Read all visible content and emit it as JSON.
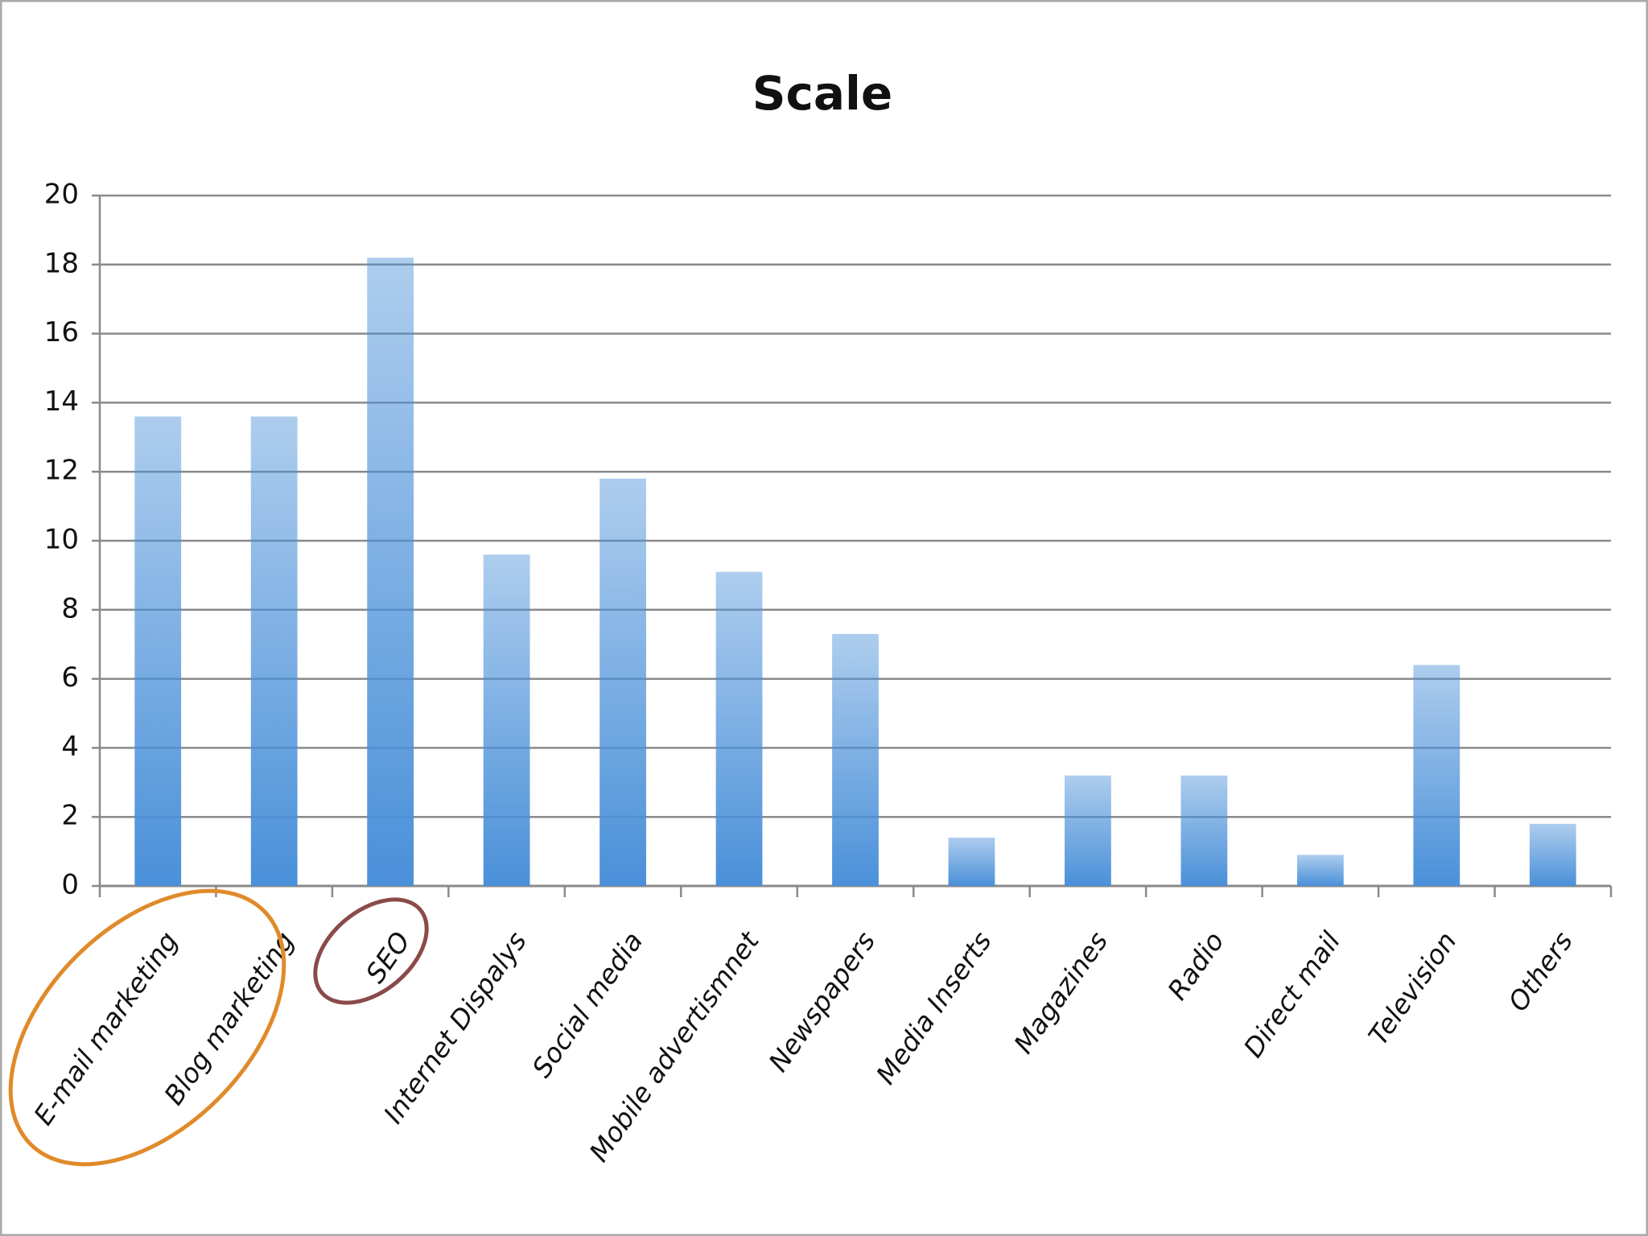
{
  "chart_data": {
    "type": "bar",
    "title": "Scale",
    "categories": [
      "E-mail marketing",
      "Blog marketing",
      "SEO",
      "Internet Dispalys",
      "Social media",
      "Mobile advertismnet",
      "Newspapers",
      "Media Inserts",
      "Magazines",
      "Radio",
      "Direct mail",
      "Television",
      "Others"
    ],
    "values": [
      13.6,
      13.6,
      18.2,
      9.6,
      11.8,
      9.1,
      7.3,
      1.4,
      3.2,
      3.2,
      0.9,
      6.4,
      1.8
    ],
    "color": "#4a90d9",
    "ylim": [
      0,
      20
    ],
    "yticks": [
      0,
      2,
      4,
      6,
      8,
      10,
      12,
      14,
      16,
      18,
      20
    ],
    "grid": true
  }
}
